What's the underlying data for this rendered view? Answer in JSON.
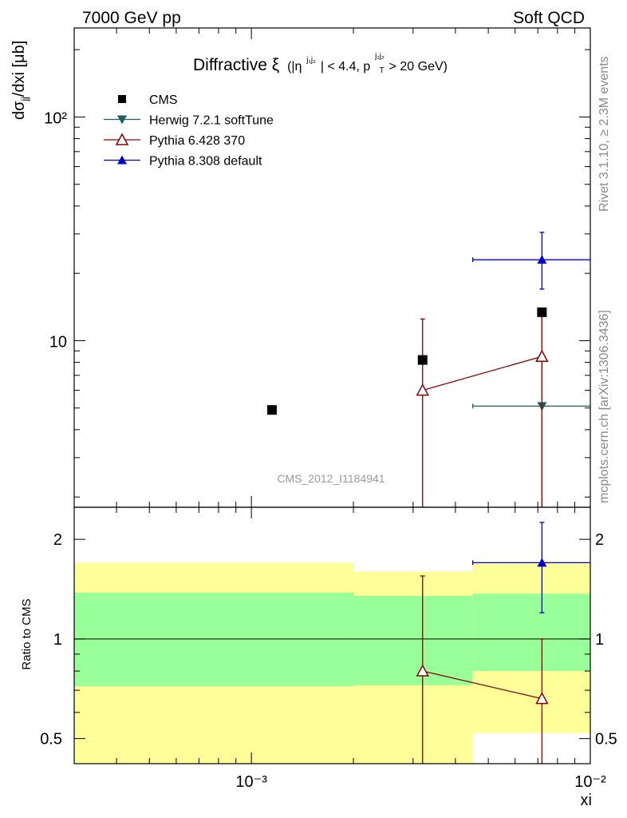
{
  "header": {
    "energy_label": "7000 GeV pp",
    "process_label": "Soft QCD"
  },
  "side_labels": {
    "rivet": "Rivet 3.1.10, ≥ 2.3M events",
    "mcplots": "mcplots.cern.ch [arXiv:1306.3436]"
  },
  "chart_data": [
    {
      "type": "scatter",
      "title_main": "Diffractive ξ",
      "title_cut_a": "(|η",
      "title_sup_a": "j₁j₂",
      "title_cut_b": "| < 4.4, p",
      "title_sup_b": "j₁j₂",
      "title_sub_b": "T",
      "title_cut_c": " > 20 GeV)",
      "ylabel": "dσjj/dxi [μb]",
      "xlabel": "xi",
      "x_scale": "log",
      "y_scale": "log",
      "xlim": [
        0.0003,
        0.01
      ],
      "ylim": [
        1.8,
        250
      ],
      "x_tick_labels": [
        "10⁻³",
        "10⁻²"
      ],
      "y_tick_labels": [
        "10",
        "10²"
      ],
      "watermark": "CMS_2012_I1184941",
      "legend_position": "top-left",
      "series": [
        {
          "name": "CMS",
          "color": "#000000",
          "marker": "filled-square",
          "points": [
            {
              "x": 0.00115,
              "y": 4.9
            },
            {
              "x": 0.0032,
              "y": 8.2
            },
            {
              "x": 0.0072,
              "y": 13.4
            }
          ]
        },
        {
          "name": "Herwig 7.2.1 softTune",
          "color": "#1f5f5f",
          "marker": "filled-triangle-down",
          "points": [
            {
              "x": 0.0072,
              "y": 5.1,
              "xlo": 0.0045,
              "xhi": 0.01,
              "ylo": 0.5,
              "yhi": 13.5
            }
          ]
        },
        {
          "name": "Pythia 6.428 370",
          "color": "#8b0000",
          "marker": "open-triangle-up",
          "line": true,
          "points": [
            {
              "x": 0.0032,
              "y": 6.0,
              "ylo": 0.5,
              "yhi": 12.5
            },
            {
              "x": 0.0072,
              "y": 8.5,
              "ylo": 0.5,
              "yhi": 13.5
            }
          ]
        },
        {
          "name": "Pythia 8.308 default",
          "color": "#0000cc",
          "marker": "filled-triangle-up",
          "points": [
            {
              "x": 0.0072,
              "y": 23.0,
              "xlo": 0.0045,
              "xhi": 0.01,
              "ylo": 17.0,
              "yhi": 30.5
            }
          ]
        }
      ]
    },
    {
      "type": "scatter",
      "ylabel": "Ratio to CMS",
      "xlabel": "xi",
      "x_scale": "log",
      "y_scale": "log",
      "xlim": [
        0.0003,
        0.01
      ],
      "ylim": [
        0.42,
        2.5
      ],
      "y_tick_labels": [
        "0.5",
        "1",
        "2"
      ],
      "reference_line": 1,
      "bands": [
        {
          "xlo": 0.0003,
          "xhi": 0.002,
          "inner": [
            0.72,
            1.38
          ],
          "outer": [
            0.0,
            1.7
          ]
        },
        {
          "xlo": 0.002,
          "xhi": 0.0045,
          "inner": [
            0.725,
            1.35
          ],
          "outer": [
            0.0,
            1.6
          ]
        },
        {
          "xlo": 0.0045,
          "xhi": 0.01,
          "inner": [
            0.8,
            1.37
          ],
          "outer": [
            0.52,
            1.7
          ]
        }
      ],
      "band_colors": {
        "inner": "#99ff99",
        "outer": "#ffff99"
      },
      "series": [
        {
          "name": "Pythia 6.428 370",
          "color": "#8b0000",
          "marker": "open-triangle-up",
          "line": true,
          "points": [
            {
              "x": 0.0032,
              "y": 0.8,
              "ylo": 0.3,
              "yhi": 1.55
            },
            {
              "x": 0.0072,
              "y": 0.66,
              "ylo": 0.3,
              "yhi": 1.0
            }
          ]
        },
        {
          "name": "Pythia 8.308 default",
          "color": "#0000cc",
          "marker": "filled-triangle-up",
          "points": [
            {
              "x": 0.0072,
              "y": 1.7,
              "xlo": 0.0045,
              "xhi": 0.01,
              "ylo": 1.2,
              "yhi": 2.25
            }
          ]
        }
      ]
    }
  ]
}
